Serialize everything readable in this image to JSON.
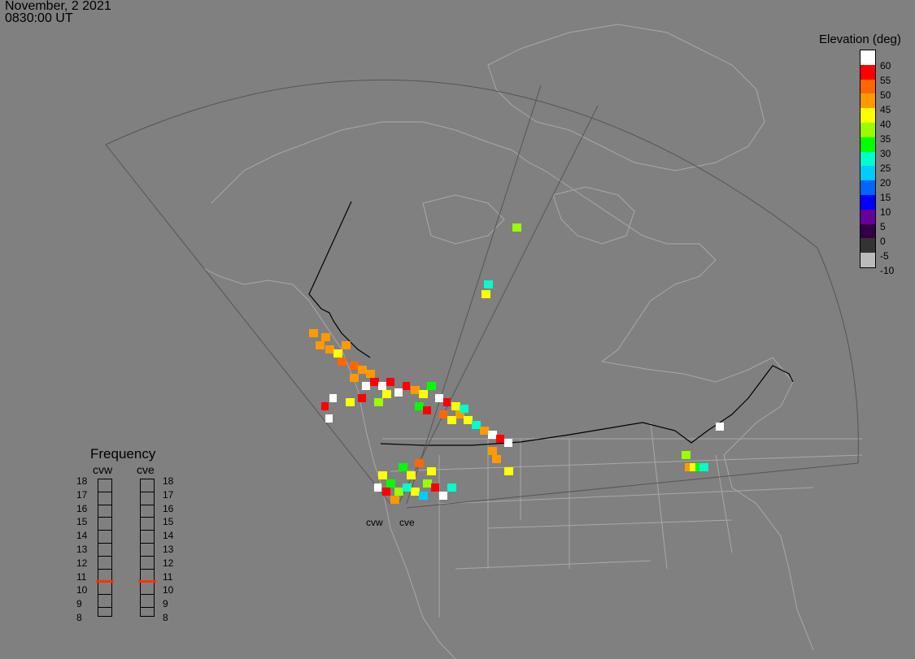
{
  "header": {
    "date": "November, 2 2021",
    "time": "0830:00 UT"
  },
  "legend": {
    "title": "Elevation (deg)",
    "entries": [
      {
        "label": "60",
        "color": "#ffffff"
      },
      {
        "label": "55",
        "color": "#ff0000"
      },
      {
        "label": "50",
        "color": "#ff6600"
      },
      {
        "label": "45",
        "color": "#ff9900"
      },
      {
        "label": "40",
        "color": "#ffff00"
      },
      {
        "label": "35",
        "color": "#99ff00"
      },
      {
        "label": "30",
        "color": "#00ff00"
      },
      {
        "label": "25",
        "color": "#00ffcc"
      },
      {
        "label": "20",
        "color": "#00ccff"
      },
      {
        "label": "15",
        "color": "#0066ff"
      },
      {
        "label": "10",
        "color": "#0000ff"
      },
      {
        "label": "5",
        "color": "#660099"
      },
      {
        "label": "0",
        "color": "#330044"
      },
      {
        "label": "-5",
        "color": "#333333"
      },
      {
        "label": "-10",
        "color": "#bbbbbb"
      }
    ]
  },
  "frequency": {
    "title": "Frequency",
    "radars": [
      {
        "name": "cvw",
        "active_mhz": 11
      },
      {
        "name": "cve",
        "active_mhz": 11
      }
    ],
    "scale": [
      "18",
      "17",
      "16",
      "15",
      "14",
      "13",
      "12",
      "11",
      "10",
      "9",
      "8"
    ],
    "active_color": "#ff3300"
  },
  "sites": [
    "cvw",
    "cve"
  ]
}
